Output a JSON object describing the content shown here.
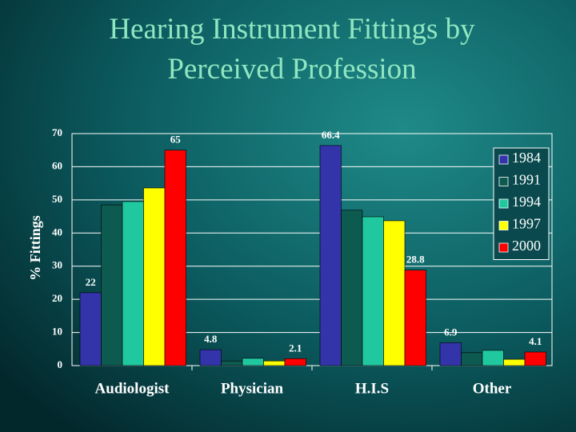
{
  "chart_data": {
    "type": "bar",
    "title": "Hearing Instrument Fittings by Perceived Profession",
    "ylabel": "% Fittings",
    "categories": [
      "Audiologist",
      "Physician",
      "H.I.S",
      "Other"
    ],
    "series": [
      {
        "name": "1984",
        "color": "#3333aa",
        "values": [
          22,
          4.8,
          66.4,
          6.9
        ],
        "value_labels": [
          "22",
          "4.8",
          "66.4",
          "6.9"
        ]
      },
      {
        "name": "1991",
        "color": "#0d5a50",
        "values": [
          48.5,
          1.4,
          46.9,
          3.9
        ],
        "value_labels": [
          null,
          null,
          null,
          null
        ]
      },
      {
        "name": "1994",
        "color": "#20c8a0",
        "values": [
          49.5,
          2.2,
          44.9,
          4.6
        ],
        "value_labels": [
          null,
          null,
          null,
          null
        ]
      },
      {
        "name": "1997",
        "color": "#ffff00",
        "values": [
          53.6,
          1.4,
          43.7,
          1.9
        ],
        "value_labels": [
          null,
          null,
          null,
          null
        ]
      },
      {
        "name": "2000",
        "color": "#ff0000",
        "values": [
          65,
          2.1,
          28.8,
          4.1
        ],
        "value_labels": [
          "65",
          "2.1",
          "28.8",
          "4.1"
        ]
      }
    ],
    "ylim": [
      0,
      70
    ],
    "yticks": [
      0,
      10,
      20,
      30,
      40,
      50,
      60,
      70
    ],
    "grid": true,
    "legend": "right"
  }
}
